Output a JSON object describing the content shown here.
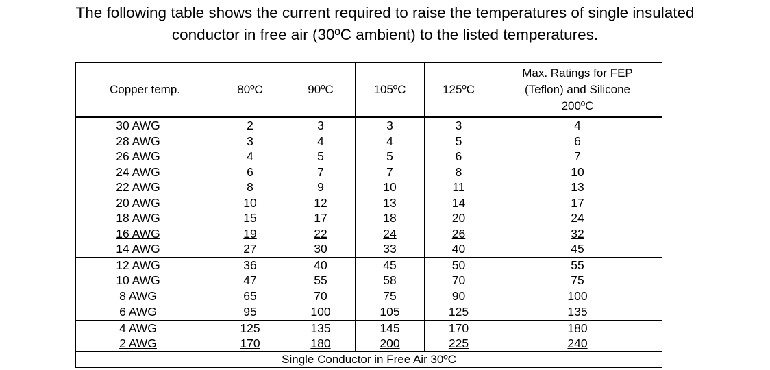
{
  "intro": {
    "line1": "The following table shows the current required to raise the temperatures of single insulated",
    "line2": "conductor in free air (30ºC ambient) to the listed temperatures."
  },
  "table": {
    "headers": {
      "copper": "Copper temp.",
      "t80": "80ºC",
      "t90": "90ºC",
      "t105": "105ºC",
      "t125": "125ºC",
      "max_line1": "Max. Ratings for FEP",
      "max_line2": "(Teflon) and Silicone",
      "max_line3": "200ºC"
    },
    "rows": [
      [
        "30 AWG",
        "2",
        "3",
        "3",
        "3",
        "4"
      ],
      [
        "28 AWG",
        "3",
        "4",
        "4",
        "5",
        "6"
      ],
      [
        "26 AWG",
        "4",
        "5",
        "5",
        "6",
        "7"
      ],
      [
        "24 AWG",
        "6",
        "7",
        "7",
        "8",
        "10"
      ],
      [
        "22 AWG",
        "8",
        "9",
        "10",
        "11",
        "13"
      ],
      [
        "20 AWG",
        "10",
        "12",
        "13",
        "14",
        "17"
      ],
      [
        "18 AWG",
        "15",
        "17",
        "18",
        "20",
        "24"
      ],
      [
        "16 AWG",
        "19",
        "22",
        "24",
        "26",
        "32"
      ],
      [
        "14 AWG",
        "27",
        "30",
        "33",
        "40",
        "45"
      ],
      [
        "12 AWG",
        "36",
        "40",
        "45",
        "50",
        "55"
      ],
      [
        "10 AWG",
        "47",
        "55",
        "58",
        "70",
        "75"
      ],
      [
        "8 AWG",
        "65",
        "70",
        "75",
        "90",
        "100"
      ],
      [
        "6 AWG",
        "95",
        "100",
        "105",
        "125",
        "135"
      ],
      [
        "4 AWG",
        "125",
        "135",
        "145",
        "170",
        "180"
      ],
      [
        "2 AWG",
        "170",
        "180",
        "200",
        "225",
        "240"
      ]
    ],
    "footer": "Single Conductor in Free Air 30ºC"
  }
}
